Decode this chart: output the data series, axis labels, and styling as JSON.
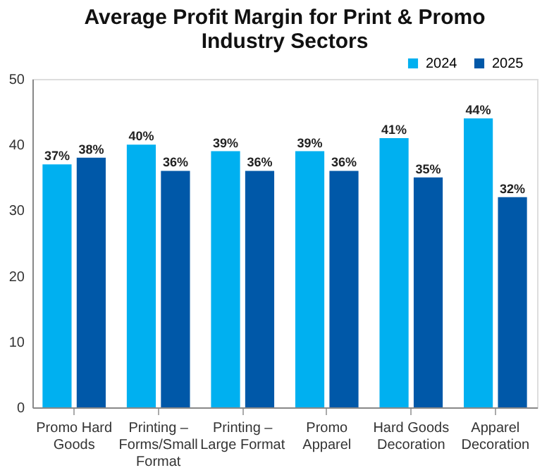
{
  "chart_data": {
    "type": "bar",
    "title": "Average Profit Margin for Print & Promo Industry Sectors",
    "categories": [
      "Promo Hard Goods",
      "Printing – Forms/Small Format",
      "Printing – Large Format",
      "Promo Apparel",
      "Hard Goods Decoration",
      "Apparel Decoration"
    ],
    "series": [
      {
        "name": "2024",
        "color": "#00b0f0",
        "values": [
          37,
          40,
          39,
          39,
          41,
          44
        ],
        "value_labels": [
          "37%",
          "40%",
          "39%",
          "39%",
          "41%",
          "44%"
        ]
      },
      {
        "name": "2025",
        "color": "#0058a8",
        "values": [
          38,
          36,
          36,
          36,
          35,
          32
        ],
        "value_labels": [
          "38%",
          "36%",
          "36%",
          "36%",
          "35%",
          "32%"
        ]
      }
    ],
    "ylim": [
      0,
      50
    ],
    "yticks": [
      0,
      10,
      20,
      30,
      40,
      50
    ],
    "legend": "top right"
  }
}
